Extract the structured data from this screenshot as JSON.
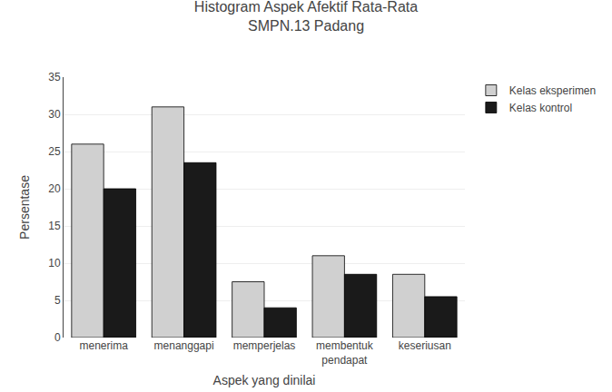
{
  "chart_data": {
    "type": "bar",
    "title": "Histogram Aspek Afektif Rata-Rata",
    "subtitle": "SMPN.13 Padang",
    "x_label": "Aspek yang dinilai",
    "y_label": "Persentase",
    "categories": [
      "menerima",
      "menanggapi",
      "memperjelas",
      "membentuk\npendapat",
      "keseriusan"
    ],
    "series": [
      {
        "name": "Kelas eksperimen",
        "color": "#d0d0d0",
        "values": [
          26,
          31,
          7.5,
          11,
          8.5
        ]
      },
      {
        "name": "Kelas kontrol",
        "color": "#1a1a1a",
        "values": [
          20,
          23.5,
          4,
          8.5,
          5.5
        ]
      }
    ],
    "ylim": [
      0,
      35
    ],
    "yticks": [
      0,
      5,
      10,
      15,
      20,
      25,
      30,
      35
    ],
    "grid": true,
    "legend": "right"
  }
}
